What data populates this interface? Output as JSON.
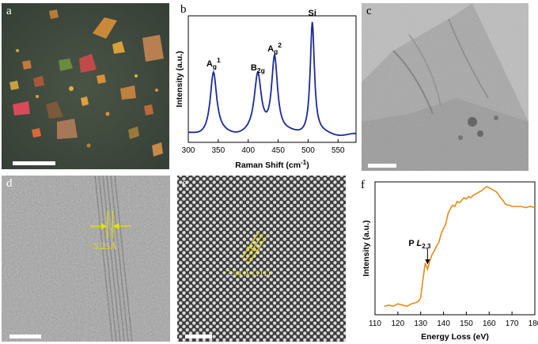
{
  "panels": {
    "a": {
      "label": "a"
    },
    "b": {
      "label": "b"
    },
    "c": {
      "label": "c"
    },
    "d": {
      "label": "d",
      "annotation": "5.25Å"
    },
    "e": {
      "label": "e",
      "annotation": "2.54 Å (111)"
    },
    "f": {
      "label": "f"
    }
  },
  "colors": {
    "raman_line": "#1a2a9a",
    "eels_line": "#e8891a",
    "annotation": "#e8e000"
  },
  "chart_data": [
    {
      "panel": "b",
      "type": "line",
      "xlabel": "Raman Shift (cm-1)",
      "ylabel": "Intensity (a.u.)",
      "xlim": [
        300,
        580
      ],
      "xticks": [
        300,
        350,
        400,
        450,
        500,
        550
      ],
      "peaks": [
        {
          "label_main": "A",
          "label_sub": "g",
          "label_sup": "1",
          "x": 342,
          "y": 0.55
        },
        {
          "label_main": "B",
          "label_sub": "2g",
          "label_sup": "",
          "x": 416,
          "y": 0.52
        },
        {
          "label_main": "A",
          "label_sub": "g",
          "label_sup": "2",
          "x": 444,
          "y": 0.67
        },
        {
          "label_main": "Si",
          "label_sub": "",
          "label_sup": "",
          "x": 507,
          "y": 0.95
        }
      ],
      "grid": false
    },
    {
      "panel": "f",
      "type": "line",
      "xlabel": "Energy Loss (eV)",
      "ylabel": "Intensity (a.u.)",
      "xlim": [
        110,
        180
      ],
      "xticks": [
        110,
        120,
        130,
        140,
        150,
        160,
        170,
        180
      ],
      "annotation": {
        "main": "P ",
        "italic": "L",
        "sub": "2,3",
        "x": 133
      },
      "x": [
        114,
        116,
        118,
        120,
        122,
        124,
        126,
        128,
        129,
        130,
        131,
        132,
        133,
        134,
        135,
        136,
        137,
        138,
        139,
        140,
        141,
        142,
        143,
        144,
        145,
        146,
        147,
        148,
        149,
        150,
        151,
        152,
        153,
        154,
        155,
        156,
        157,
        158,
        159,
        160,
        161,
        162,
        163,
        164,
        165,
        166,
        167,
        168,
        169,
        170,
        172,
        174,
        176,
        178,
        180
      ],
      "y": [
        0.03,
        0.04,
        0.03,
        0.05,
        0.04,
        0.03,
        0.05,
        0.06,
        0.07,
        0.1,
        0.25,
        0.38,
        0.33,
        0.4,
        0.45,
        0.48,
        0.52,
        0.55,
        0.62,
        0.66,
        0.7,
        0.78,
        0.82,
        0.85,
        0.84,
        0.88,
        0.87,
        0.89,
        0.91,
        0.9,
        0.92,
        0.91,
        0.93,
        0.94,
        0.95,
        0.96,
        0.97,
        0.99,
        1.0,
        0.99,
        0.98,
        0.97,
        0.96,
        0.94,
        0.91,
        0.89,
        0.86,
        0.85,
        0.85,
        0.84,
        0.84,
        0.84,
        0.83,
        0.84,
        0.83
      ],
      "grid": false
    }
  ]
}
